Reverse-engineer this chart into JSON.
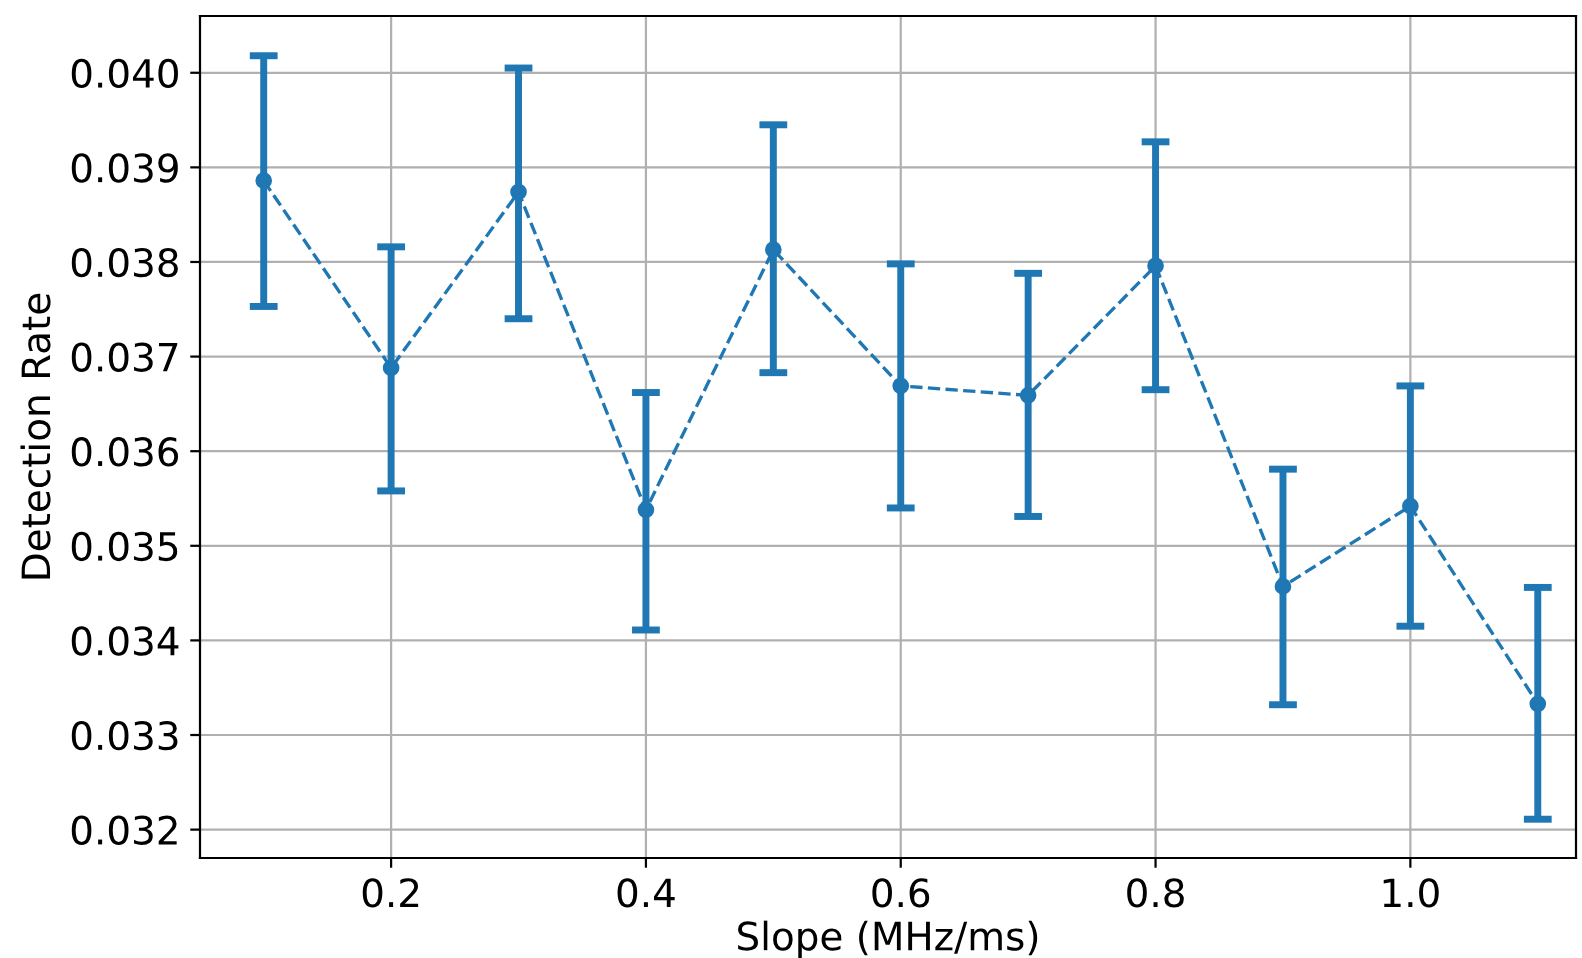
{
  "chart_data": {
    "type": "line",
    "xlabel": "Slope (MHz/ms)",
    "ylabel": "Detection Rate",
    "x": [
      0.1,
      0.2,
      0.3,
      0.4,
      0.5,
      0.6,
      0.7,
      0.8,
      0.9,
      1.0,
      1.1
    ],
    "series": [
      {
        "color": "#1f77b4",
        "values": [
          0.03886,
          0.03688,
          0.03874,
          0.03538,
          0.03813,
          0.03669,
          0.03659,
          0.03796,
          0.03457,
          0.03542,
          0.03333
        ],
        "errors": [
          [
            0.03753,
            0.04018
          ],
          [
            0.03558,
            0.03816
          ],
          [
            0.0374,
            0.04005
          ],
          [
            0.03411,
            0.03662
          ],
          [
            0.03683,
            0.03945
          ],
          [
            0.0354,
            0.03798
          ],
          [
            0.03531,
            0.03788
          ],
          [
            0.03665,
            0.03927
          ],
          [
            0.03332,
            0.03581
          ],
          [
            0.03415,
            0.03669
          ],
          [
            0.03211,
            0.03456
          ]
        ]
      }
    ],
    "marker": "circle",
    "line_style": "dashed",
    "grid": true,
    "xlim": [
      0.05,
      1.13
    ],
    "xticks": [
      {
        "value": 0.2,
        "label": "0.2"
      },
      {
        "value": 0.4,
        "label": "0.4"
      },
      {
        "value": 0.6,
        "label": "0.6"
      },
      {
        "value": 0.8,
        "label": "0.8"
      },
      {
        "value": 1.0,
        "label": "1.0"
      }
    ],
    "ylim": [
      0.0317,
      0.0406
    ],
    "yticks": [
      {
        "value": 0.032,
        "label": "0.032"
      },
      {
        "value": 0.033,
        "label": "0.033"
      },
      {
        "value": 0.034,
        "label": "0.034"
      },
      {
        "value": 0.035,
        "label": "0.035"
      },
      {
        "value": 0.036,
        "label": "0.036"
      },
      {
        "value": 0.037,
        "label": "0.037"
      },
      {
        "value": 0.038,
        "label": "0.038"
      },
      {
        "value": 0.039,
        "label": "0.039"
      },
      {
        "value": 0.04,
        "label": "0.040"
      }
    ]
  }
}
